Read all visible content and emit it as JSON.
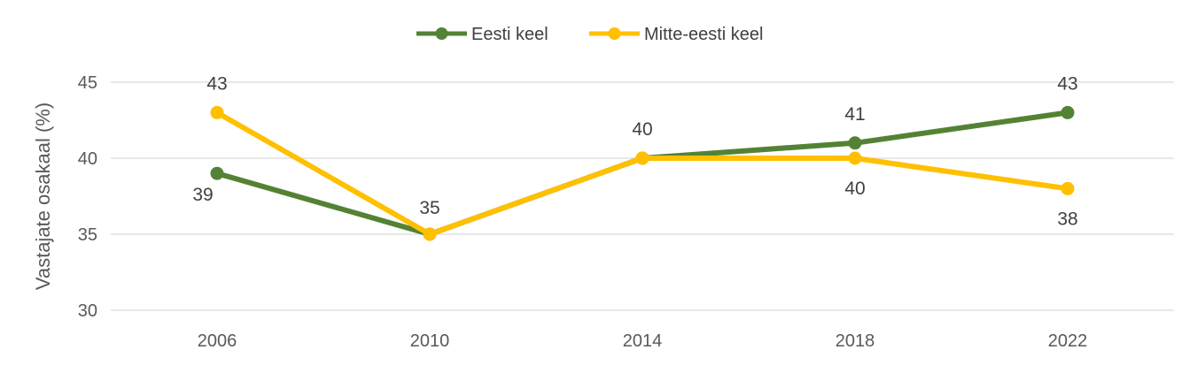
{
  "chart_data": {
    "type": "line",
    "title": "",
    "xlabel": "",
    "ylabel": "Vastajate osakaal (%)",
    "categories": [
      "2006",
      "2010",
      "2014",
      "2018",
      "2022"
    ],
    "ylim": [
      30,
      45
    ],
    "yticks": [
      30,
      35,
      40,
      45
    ],
    "ytick_labels": [
      "30",
      "35",
      "40",
      "45"
    ],
    "grid": true,
    "legend_position": "top-center",
    "series": [
      {
        "name": "Eesti keel",
        "color": "#548235",
        "values": [
          39,
          35,
          40,
          41,
          43
        ],
        "labels": [
          "39",
          "35",
          "40",
          "41",
          "43"
        ]
      },
      {
        "name": "Mitte-eesti keel",
        "color": "#FFC000",
        "values": [
          43,
          35,
          40,
          40,
          38
        ],
        "labels": [
          "43",
          "",
          "",
          "40",
          "38"
        ]
      }
    ]
  }
}
